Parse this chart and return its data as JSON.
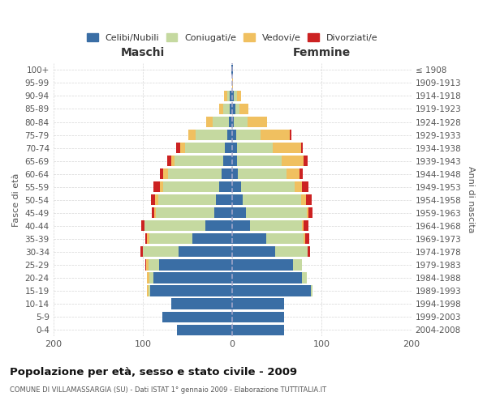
{
  "age_groups": [
    "100+",
    "95-99",
    "90-94",
    "85-89",
    "80-84",
    "75-79",
    "70-74",
    "65-69",
    "60-64",
    "55-59",
    "50-54",
    "45-49",
    "40-44",
    "35-39",
    "30-34",
    "25-29",
    "20-24",
    "15-19",
    "10-14",
    "5-9",
    "0-4"
  ],
  "birth_years": [
    "≤ 1908",
    "1909-1913",
    "1914-1918",
    "1919-1923",
    "1924-1928",
    "1929-1933",
    "1934-1938",
    "1939-1943",
    "1944-1948",
    "1949-1953",
    "1954-1958",
    "1959-1963",
    "1964-1968",
    "1969-1973",
    "1974-1978",
    "1979-1983",
    "1984-1988",
    "1989-1993",
    "1994-1998",
    "1999-2003",
    "2004-2008"
  ],
  "maschi": {
    "celibi": [
      1,
      0,
      3,
      3,
      4,
      6,
      8,
      10,
      12,
      15,
      18,
      20,
      30,
      45,
      60,
      82,
      88,
      92,
      68,
      78,
      62
    ],
    "coniugati": [
      0,
      0,
      3,
      7,
      18,
      35,
      45,
      55,
      60,
      62,
      65,
      65,
      68,
      48,
      40,
      12,
      5,
      2,
      0,
      0,
      0
    ],
    "vedovi": [
      0,
      0,
      3,
      5,
      7,
      8,
      5,
      3,
      5,
      4,
      3,
      2,
      0,
      2,
      0,
      2,
      2,
      1,
      0,
      0,
      0
    ],
    "divorziati": [
      0,
      0,
      0,
      0,
      0,
      0,
      5,
      5,
      4,
      7,
      5,
      3,
      4,
      2,
      3,
      1,
      0,
      0,
      0,
      0,
      0
    ]
  },
  "femmine": {
    "nubili": [
      1,
      0,
      2,
      3,
      2,
      4,
      5,
      5,
      6,
      10,
      12,
      15,
      20,
      38,
      48,
      68,
      78,
      88,
      58,
      58,
      58
    ],
    "coniugate": [
      0,
      0,
      3,
      5,
      15,
      28,
      40,
      50,
      55,
      60,
      65,
      68,
      58,
      42,
      36,
      10,
      5,
      2,
      0,
      0,
      0
    ],
    "vedove": [
      0,
      1,
      5,
      10,
      22,
      32,
      32,
      25,
      14,
      8,
      5,
      2,
      2,
      1,
      0,
      0,
      0,
      0,
      0,
      0,
      0
    ],
    "divorziate": [
      0,
      0,
      0,
      0,
      0,
      2,
      2,
      4,
      4,
      7,
      7,
      5,
      5,
      5,
      3,
      0,
      0,
      0,
      0,
      0,
      0
    ]
  },
  "colors": {
    "celibi": "#3A6EA5",
    "coniugati": "#C5D9A0",
    "vedovi": "#F0C060",
    "divorziati": "#CC2222"
  },
  "legend_labels": [
    "Celibi/Nubili",
    "Coniugati/e",
    "Vedovi/e",
    "Divorziati/e"
  ],
  "title": "Popolazione per età, sesso e stato civile - 2009",
  "subtitle": "COMUNE DI VILLAMASSARGIA (SU) - Dati ISTAT 1° gennaio 2009 - Elaborazione TUTTITALIA.IT",
  "xlabel_left": "Maschi",
  "xlabel_right": "Femmine",
  "ylabel_left": "Fasce di età",
  "ylabel_right": "Anni di nascita",
  "xlim": 200,
  "background_color": "#ffffff",
  "bar_height": 0.82
}
